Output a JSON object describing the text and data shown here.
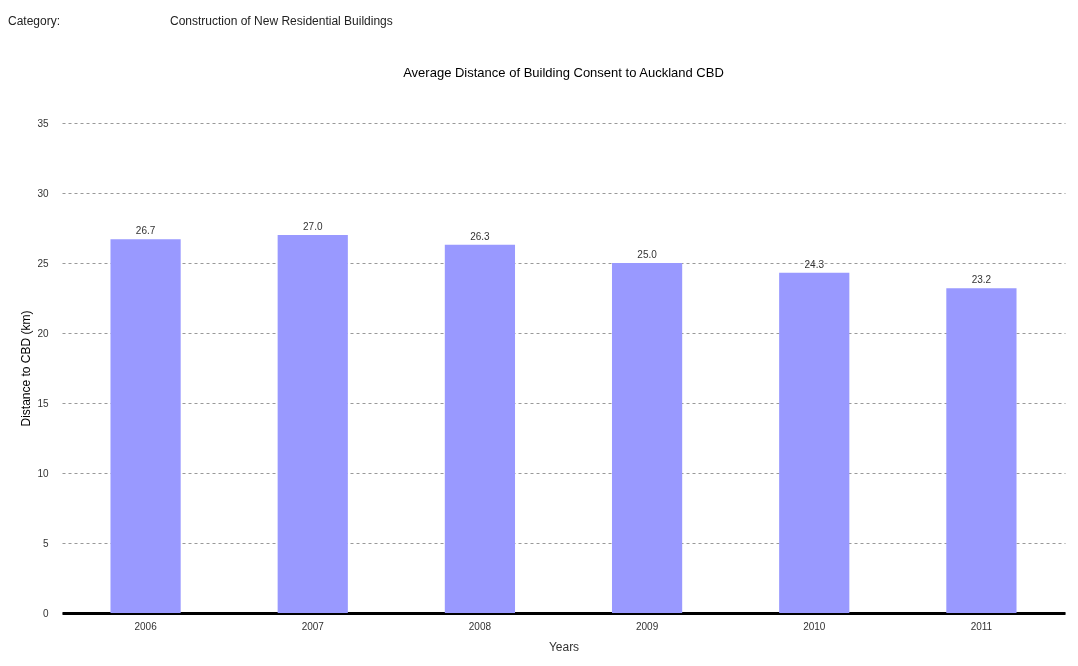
{
  "chart_data": {
    "type": "bar",
    "title": "Average Distance of Building Consent to Auckland CBD",
    "annotations": [
      "Category:",
      "Construction of New Residential Buildings"
    ],
    "xlabel": "Years",
    "ylabel": "Distance to CBD (km)",
    "categories": [
      "2006",
      "2007",
      "2008",
      "2009",
      "2010",
      "2011"
    ],
    "values": [
      26.7,
      27.0,
      26.3,
      25.0,
      24.3,
      23.2
    ],
    "value_labels": [
      "26.7",
      "27.0",
      "26.3",
      "25.0",
      "24.3",
      "23.2"
    ],
    "color": "#9999ff",
    "ylim": [
      0,
      35
    ],
    "yticks": [
      0,
      5,
      10,
      15,
      20,
      25,
      30,
      35
    ],
    "grid": "y"
  }
}
